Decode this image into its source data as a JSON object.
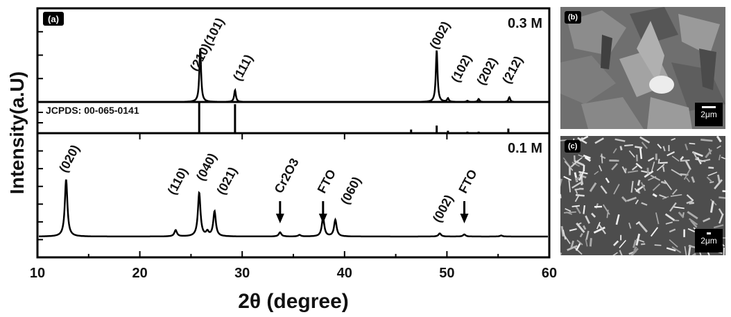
{
  "chart_data": {
    "type": "line",
    "xlabel": "2θ (degree)",
    "ylabel": "Intensity(a.U)",
    "xlim": [
      10,
      60
    ],
    "x_ticks": [
      "10",
      "20",
      "30",
      "40",
      "50",
      "60"
    ],
    "panel_label": "(a)",
    "grid": false,
    "subplots": [
      {
        "label": "0.3 M",
        "series": [
          {
            "peaks": [
              {
                "x": 25.9,
                "height": 0.92
              },
              {
                "x": 29.3,
                "height": 0.2
              },
              {
                "x": 49.0,
                "height": 0.88
              },
              {
                "x": 50.1,
                "height": 0.06
              },
              {
                "x": 52.0,
                "height": 0.02
              },
              {
                "x": 53.1,
                "height": 0.05
              },
              {
                "x": 56.1,
                "height": 0.08
              }
            ]
          }
        ],
        "annotations": [
          {
            "text": "(210)(101)",
            "x": 25.6
          },
          {
            "text": "(111)",
            "x": 29.8
          },
          {
            "text": "(002)",
            "x": 49.0
          },
          {
            "text": "(102)",
            "x": 51.1
          },
          {
            "text": "(202)",
            "x": 53.6
          },
          {
            "text": "(212)",
            "x": 56.1
          }
        ]
      },
      {
        "label": "JCPDS:  00-065-0141",
        "type": "stick",
        "sticks": [
          {
            "x": 25.8,
            "height": 1.0
          },
          {
            "x": 29.3,
            "height": 0.95
          },
          {
            "x": 46.5,
            "height": 0.12
          },
          {
            "x": 49.0,
            "height": 0.25
          },
          {
            "x": 50.1,
            "height": 0.08
          },
          {
            "x": 52.0,
            "height": 0.05
          },
          {
            "x": 53.1,
            "height": 0.05
          },
          {
            "x": 56.0,
            "height": 0.15
          }
        ]
      },
      {
        "label": "0.1 M",
        "series": [
          {
            "peaks": [
              {
                "x": 12.8,
                "height": 0.55
              },
              {
                "x": 23.5,
                "height": 0.06
              },
              {
                "x": 25.8,
                "height": 0.42
              },
              {
                "x": 26.6,
                "height": 0.04
              },
              {
                "x": 27.3,
                "height": 0.24
              },
              {
                "x": 33.7,
                "height": 0.04
              },
              {
                "x": 35.6,
                "height": 0.015
              },
              {
                "x": 37.9,
                "height": 0.18
              },
              {
                "x": 39.1,
                "height": 0.16
              },
              {
                "x": 49.3,
                "height": 0.03
              },
              {
                "x": 51.7,
                "height": 0.02
              },
              {
                "x": 55.3,
                "height": 0.01
              }
            ]
          }
        ],
        "annotations": [
          {
            "text": "(020)",
            "x": 12.8
          },
          {
            "text": "(110)",
            "x": 23.4
          },
          {
            "text": "(040)",
            "x": 26.2
          },
          {
            "text": "(021)",
            "x": 28.2
          },
          {
            "text": "Cr2O3",
            "x": 33.7,
            "arrow": true
          },
          {
            "text": "FTO",
            "x": 37.9,
            "arrow": true
          },
          {
            "text": "(060)",
            "x": 40.3
          },
          {
            "text": "(002)",
            "x": 49.3
          },
          {
            "text": "FTO",
            "x": 51.7,
            "arrow": true
          }
        ]
      }
    ]
  },
  "sem_images": [
    {
      "label": "(b)",
      "scale_bar": "2μm"
    },
    {
      "label": "(c)",
      "scale_bar": "2μm"
    }
  ]
}
